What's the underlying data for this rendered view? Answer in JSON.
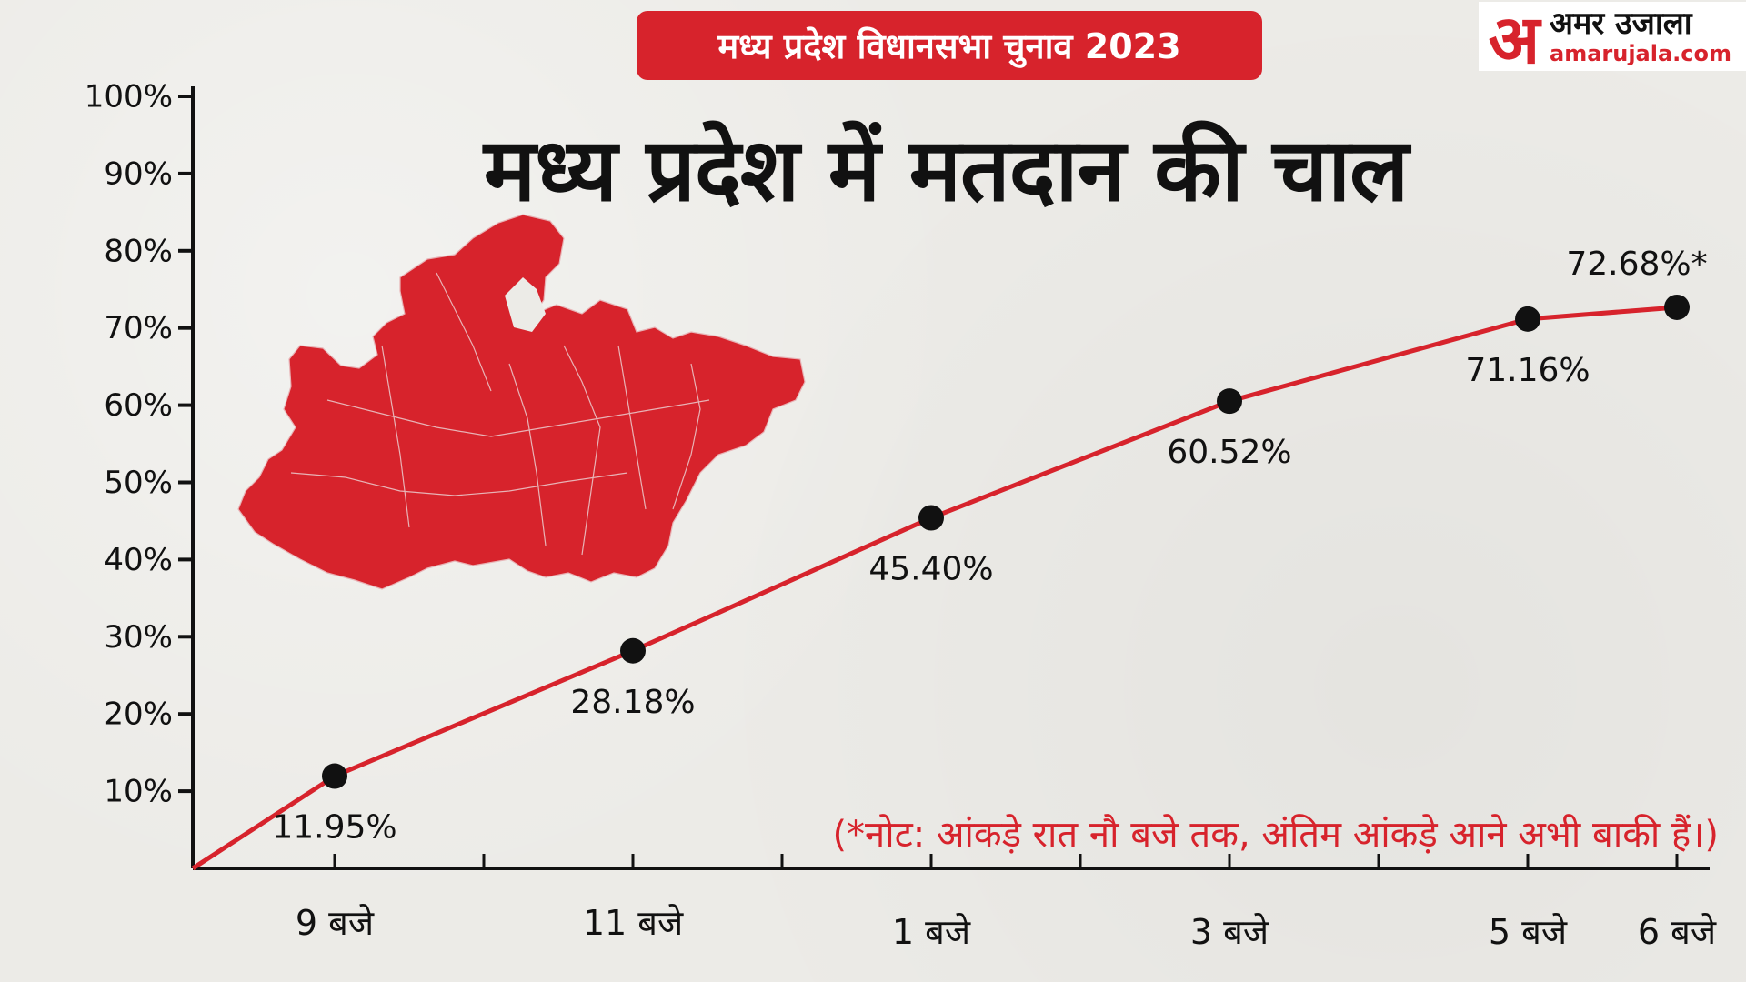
{
  "banner": {
    "text": "मध्य प्रदेश विधानसभा चुनाव 2023"
  },
  "headline": {
    "text": "मध्य प्रदेश में मतदान की चाल"
  },
  "logo": {
    "mark": "अ",
    "hindi": "अमर उजाला",
    "domain": "amarujala.com"
  },
  "note": {
    "text": "(*नोट: आंकड़े रात नौ बजे तक, अंतिम आंकड़े आने अभी बाकी हैं।)"
  },
  "colors": {
    "accent": "#d7232c",
    "line": "#d7232c",
    "marker": "#111111",
    "axis": "#111111"
  },
  "chart_data": {
    "type": "line",
    "title": "मध्य प्रदेश में मतदान की चाल",
    "x": [
      "9 बजे",
      "11 बजे",
      "1 बजे",
      "3 बजे",
      "5 बजे",
      "6 बजे"
    ],
    "x_hours": [
      9,
      11,
      13,
      15,
      17,
      18
    ],
    "values": [
      11.95,
      28.18,
      45.4,
      60.52,
      71.16,
      72.68
    ],
    "data_labels": [
      "11.95%",
      "28.18%",
      "45.40%",
      "60.52%",
      "71.16%",
      "72.68%*"
    ],
    "y_ticks": [
      "10%",
      "20%",
      "30%",
      "40%",
      "50%",
      "60%",
      "70%",
      "80%",
      "90%",
      "100%"
    ],
    "ylim": [
      0,
      100
    ],
    "xlim": [
      7,
      19
    ],
    "grid": false,
    "legend": false
  }
}
